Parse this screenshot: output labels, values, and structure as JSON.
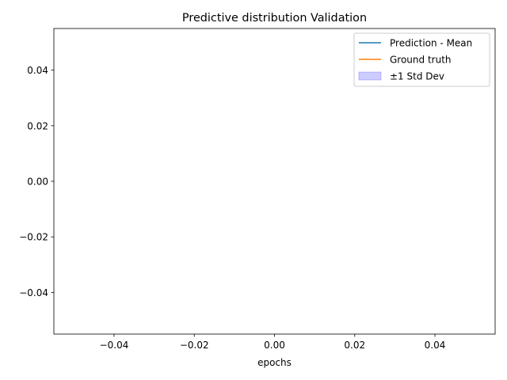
{
  "chart_data": {
    "type": "line",
    "title": "Predictive distribution Validation",
    "xlabel": "epochs",
    "ylabel": "",
    "xlim": [
      -0.055,
      0.055
    ],
    "ylim": [
      -0.055,
      0.055
    ],
    "x_ticks": [
      -0.04,
      -0.02,
      0.0,
      0.02,
      0.04
    ],
    "y_ticks": [
      -0.04,
      -0.02,
      0.0,
      0.02,
      0.04
    ],
    "x_tick_labels": [
      "−0.04",
      "−0.02",
      "0.00",
      "0.02",
      "0.04"
    ],
    "y_tick_labels": [
      "−0.04",
      "−0.02",
      "0.00",
      "0.02",
      "0.04"
    ],
    "grid": false,
    "legend_position": "top-right",
    "series": [
      {
        "name": "Prediction - Mean",
        "kind": "line",
        "color": "#1f77b4",
        "x": [],
        "y": []
      },
      {
        "name": "Ground truth",
        "kind": "line",
        "color": "#ff7f0e",
        "x": [],
        "y": []
      },
      {
        "name": "±1 Std Dev",
        "kind": "band",
        "color": "#0000ff",
        "opacity": 0.2,
        "x": [],
        "lower": [],
        "upper": []
      }
    ]
  }
}
